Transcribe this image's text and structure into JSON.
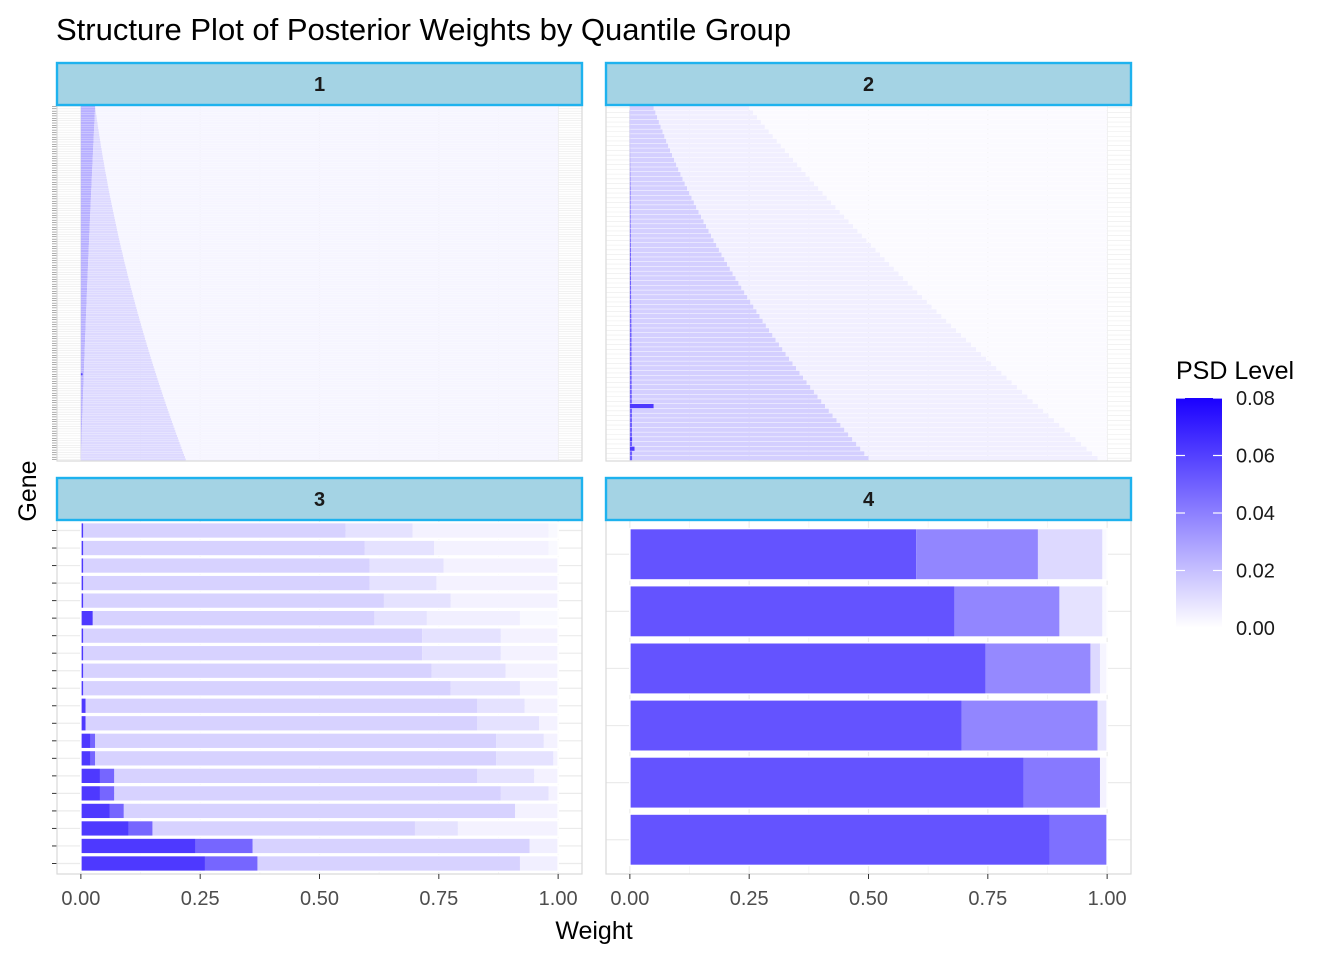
{
  "chart_data": {
    "type": "bar",
    "orientation": "horizontal",
    "stacked": true,
    "title": "Structure Plot of Posterior Weights by Quantile Group",
    "xlabel": "Weight",
    "ylabel": "Gene",
    "xlim": [
      0,
      1
    ],
    "x_ticks": [
      0,
      0.25,
      0.5,
      0.75,
      1
    ],
    "x_tick_labels": [
      "0.00",
      "0.25",
      "0.50",
      "0.75",
      "1.00"
    ],
    "grid": true,
    "legend": {
      "title": "PSD Level",
      "placement": "right",
      "type": "colorbar",
      "range": [
        0,
        0.08
      ],
      "ticks": [
        0,
        0.02,
        0.04,
        0.06,
        0.08
      ],
      "tick_labels": [
        "0.00",
        "0.02",
        "0.04",
        "0.06",
        "0.08"
      ],
      "low_color": "#ffffff",
      "high_color": "#1a00ff"
    },
    "panels": [
      {
        "label": "1",
        "n_genes": 150,
        "row_model": {
          "seg1_end": [
            0.0,
            0.012,
            0.03
          ],
          "seg1_psd": 0.025,
          "seg2_end": [
            0.22,
            0.08,
            0.03
          ],
          "seg2_psd": 0.012,
          "rest_psd": 0.003
        },
        "special_rows": [
          {
            "row": 36,
            "segments": [
              {
                "w": 0.004,
                "psd": 0.06
              }
            ]
          }
        ]
      },
      {
        "label": "2",
        "n_genes": 75,
        "row_model": {
          "seg1_end": [
            0.005,
            0.003,
            0.0
          ],
          "seg1_psd": 0.05,
          "seg2_end": [
            0.5,
            0.18,
            0.05
          ],
          "seg2_psd": 0.015,
          "seg3_end": [
            0.98,
            0.55,
            0.25
          ],
          "seg3_psd": 0.005,
          "rest_psd": 0.0015
        },
        "special_rows": [
          {
            "row": 2,
            "segments": [
              {
                "w": 0.01,
                "psd": 0.062
              }
            ]
          },
          {
            "row": 4,
            "segments": [
              {
                "w": 0.005,
                "psd": 0.06
              }
            ]
          },
          {
            "row": 11,
            "segments": [
              {
                "w": 0.05,
                "psd": 0.062
              }
            ]
          }
        ]
      },
      {
        "label": "3",
        "genes": [
          {
            "segments": [
              {
                "w": 0.26,
                "psd": 0.062
              },
              {
                "w": 0.11,
                "psd": 0.048
              },
              {
                "w": 0.55,
                "psd": 0.014
              },
              {
                "w": 0.08,
                "psd": 0.005
              }
            ]
          },
          {
            "segments": [
              {
                "w": 0.24,
                "psd": 0.062
              },
              {
                "w": 0.12,
                "psd": 0.048
              },
              {
                "w": 0.58,
                "psd": 0.014
              },
              {
                "w": 0.06,
                "psd": 0.005
              }
            ]
          },
          {
            "segments": [
              {
                "w": 0.1,
                "psd": 0.062
              },
              {
                "w": 0.05,
                "psd": 0.048
              },
              {
                "w": 0.55,
                "psd": 0.014
              },
              {
                "w": 0.09,
                "psd": 0.009
              },
              {
                "w": 0.21,
                "psd": 0.004
              }
            ]
          },
          {
            "segments": [
              {
                "w": 0.06,
                "psd": 0.062
              },
              {
                "w": 0.03,
                "psd": 0.048
              },
              {
                "w": 0.82,
                "psd": 0.014
              },
              {
                "w": 0.09,
                "psd": 0.004
              }
            ]
          },
          {
            "segments": [
              {
                "w": 0.04,
                "psd": 0.062
              },
              {
                "w": 0.03,
                "psd": 0.048
              },
              {
                "w": 0.81,
                "psd": 0.014
              },
              {
                "w": 0.1,
                "psd": 0.009
              },
              {
                "w": 0.02,
                "psd": 0.004
              }
            ]
          },
          {
            "segments": [
              {
                "w": 0.04,
                "psd": 0.062
              },
              {
                "w": 0.03,
                "psd": 0.048
              },
              {
                "w": 0.76,
                "psd": 0.014
              },
              {
                "w": 0.12,
                "psd": 0.009
              },
              {
                "w": 0.05,
                "psd": 0.004
              }
            ]
          },
          {
            "segments": [
              {
                "w": 0.02,
                "psd": 0.062
              },
              {
                "w": 0.01,
                "psd": 0.048
              },
              {
                "w": 0.84,
                "psd": 0.014
              },
              {
                "w": 0.12,
                "psd": 0.009
              },
              {
                "w": 0.01,
                "psd": 0.004
              }
            ]
          },
          {
            "segments": [
              {
                "w": 0.02,
                "psd": 0.062
              },
              {
                "w": 0.01,
                "psd": 0.048
              },
              {
                "w": 0.84,
                "psd": 0.014
              },
              {
                "w": 0.1,
                "psd": 0.009
              },
              {
                "w": 0.03,
                "psd": 0.004
              }
            ]
          },
          {
            "segments": [
              {
                "w": 0.01,
                "psd": 0.062
              },
              {
                "w": 0.82,
                "psd": 0.014
              },
              {
                "w": 0.13,
                "psd": 0.009
              },
              {
                "w": 0.04,
                "psd": 0.004
              }
            ]
          },
          {
            "segments": [
              {
                "w": 0.01,
                "psd": 0.062
              },
              {
                "w": 0.82,
                "psd": 0.014
              },
              {
                "w": 0.1,
                "psd": 0.009
              },
              {
                "w": 0.07,
                "psd": 0.004
              }
            ]
          },
          {
            "segments": [
              {
                "w": 0.005,
                "psd": 0.062
              },
              {
                "w": 0.77,
                "psd": 0.014
              },
              {
                "w": 0.145,
                "psd": 0.009
              },
              {
                "w": 0.08,
                "psd": 0.004
              }
            ]
          },
          {
            "segments": [
              {
                "w": 0.005,
                "psd": 0.062
              },
              {
                "w": 0.73,
                "psd": 0.014
              },
              {
                "w": 0.155,
                "psd": 0.009
              },
              {
                "w": 0.11,
                "psd": 0.004
              }
            ]
          },
          {
            "segments": [
              {
                "w": 0.005,
                "psd": 0.062
              },
              {
                "w": 0.71,
                "psd": 0.014
              },
              {
                "w": 0.165,
                "psd": 0.009
              },
              {
                "w": 0.12,
                "psd": 0.004
              }
            ]
          },
          {
            "segments": [
              {
                "w": 0.005,
                "psd": 0.062
              },
              {
                "w": 0.71,
                "psd": 0.014
              },
              {
                "w": 0.165,
                "psd": 0.009
              },
              {
                "w": 0.12,
                "psd": 0.004
              }
            ]
          },
          {
            "segments": [
              {
                "w": 0.025,
                "psd": 0.062
              },
              {
                "w": 0.59,
                "psd": 0.014
              },
              {
                "w": 0.11,
                "psd": 0.009
              },
              {
                "w": 0.195,
                "psd": 0.005
              },
              {
                "w": 0.08,
                "psd": 0.002
              }
            ]
          },
          {
            "segments": [
              {
                "w": 0.005,
                "psd": 0.062
              },
              {
                "w": 0.63,
                "psd": 0.014
              },
              {
                "w": 0.14,
                "psd": 0.009
              },
              {
                "w": 0.225,
                "psd": 0.004
              }
            ]
          },
          {
            "segments": [
              {
                "w": 0.005,
                "psd": 0.062
              },
              {
                "w": 0.6,
                "psd": 0.014
              },
              {
                "w": 0.14,
                "psd": 0.009
              },
              {
                "w": 0.255,
                "psd": 0.004
              }
            ]
          },
          {
            "segments": [
              {
                "w": 0.005,
                "psd": 0.062
              },
              {
                "w": 0.6,
                "psd": 0.014
              },
              {
                "w": 0.155,
                "psd": 0.009
              },
              {
                "w": 0.24,
                "psd": 0.004
              }
            ]
          },
          {
            "segments": [
              {
                "w": 0.005,
                "psd": 0.062
              },
              {
                "w": 0.59,
                "psd": 0.014
              },
              {
                "w": 0.145,
                "psd": 0.009
              },
              {
                "w": 0.24,
                "psd": 0.004
              },
              {
                "w": 0.02,
                "psd": 0.002
              }
            ]
          },
          {
            "segments": [
              {
                "w": 0.005,
                "psd": 0.062
              },
              {
                "w": 0.55,
                "psd": 0.014
              },
              {
                "w": 0.14,
                "psd": 0.009
              },
              {
                "w": 0.285,
                "psd": 0.004
              },
              {
                "w": 0.02,
                "psd": 0.002
              }
            ]
          }
        ]
      },
      {
        "label": "4",
        "genes": [
          {
            "segments": [
              {
                "w": 0.88,
                "psd": 0.054
              },
              {
                "w": 0.12,
                "psd": 0.045
              }
            ]
          },
          {
            "segments": [
              {
                "w": 0.825,
                "psd": 0.054
              },
              {
                "w": 0.16,
                "psd": 0.042
              },
              {
                "w": 0.015,
                "psd": 0.004
              }
            ]
          },
          {
            "segments": [
              {
                "w": 0.695,
                "psd": 0.054
              },
              {
                "w": 0.285,
                "psd": 0.038
              },
              {
                "w": 0.02,
                "psd": 0.008
              }
            ]
          },
          {
            "segments": [
              {
                "w": 0.745,
                "psd": 0.054
              },
              {
                "w": 0.22,
                "psd": 0.037
              },
              {
                "w": 0.02,
                "psd": 0.012
              },
              {
                "w": 0.015,
                "psd": 0.003
              }
            ]
          },
          {
            "segments": [
              {
                "w": 0.68,
                "psd": 0.054
              },
              {
                "w": 0.22,
                "psd": 0.038
              },
              {
                "w": 0.09,
                "psd": 0.009
              },
              {
                "w": 0.01,
                "psd": 0.002
              }
            ]
          },
          {
            "segments": [
              {
                "w": 0.6,
                "psd": 0.054
              },
              {
                "w": 0.255,
                "psd": 0.038
              },
              {
                "w": 0.135,
                "psd": 0.012
              },
              {
                "w": 0.01,
                "psd": 0.002
              }
            ]
          }
        ]
      }
    ]
  }
}
